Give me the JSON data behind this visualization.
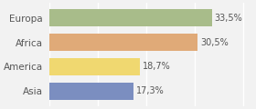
{
  "categories": [
    "Europa",
    "Africa",
    "America",
    "Asia"
  ],
  "values": [
    33.5,
    30.5,
    18.7,
    17.3
  ],
  "labels": [
    "33,5%",
    "30,5%",
    "18,7%",
    "17,3%"
  ],
  "bar_colors": [
    "#a8bc8a",
    "#e0aa78",
    "#f0d870",
    "#7b8ec0"
  ],
  "background_color": "#f2f2f2",
  "xlim": [
    0,
    42
  ],
  "bar_height": 0.7,
  "label_fontsize": 7.0,
  "category_fontsize": 7.5,
  "grid_color": "#ffffff",
  "text_color": "#555555"
}
